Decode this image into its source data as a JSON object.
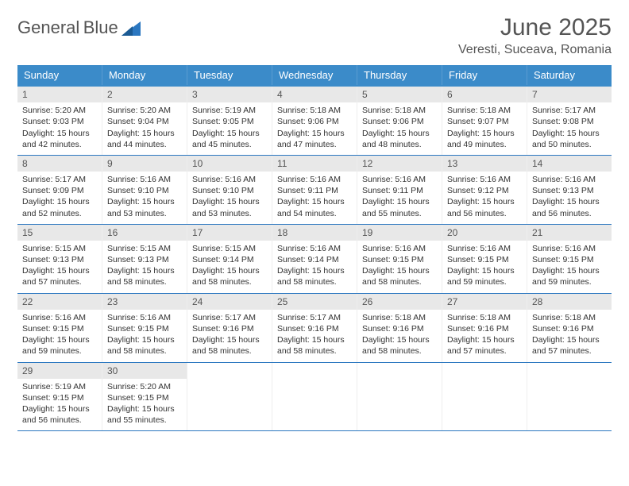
{
  "logo": {
    "word1": "General",
    "word2": "Blue"
  },
  "month_title": "June 2025",
  "location": "Veresti, Suceava, Romania",
  "colors": {
    "header_bg": "#3b8bc9",
    "header_text": "#ffffff",
    "rule": "#2b77c0",
    "daynum_bg": "#e8e8e8",
    "text": "#333333"
  },
  "day_names": [
    "Sunday",
    "Monday",
    "Tuesday",
    "Wednesday",
    "Thursday",
    "Friday",
    "Saturday"
  ],
  "weeks": [
    [
      {
        "n": "1",
        "sr": "5:20 AM",
        "ss": "9:03 PM",
        "dl": "15 hours and 42 minutes."
      },
      {
        "n": "2",
        "sr": "5:20 AM",
        "ss": "9:04 PM",
        "dl": "15 hours and 44 minutes."
      },
      {
        "n": "3",
        "sr": "5:19 AM",
        "ss": "9:05 PM",
        "dl": "15 hours and 45 minutes."
      },
      {
        "n": "4",
        "sr": "5:18 AM",
        "ss": "9:06 PM",
        "dl": "15 hours and 47 minutes."
      },
      {
        "n": "5",
        "sr": "5:18 AM",
        "ss": "9:06 PM",
        "dl": "15 hours and 48 minutes."
      },
      {
        "n": "6",
        "sr": "5:18 AM",
        "ss": "9:07 PM",
        "dl": "15 hours and 49 minutes."
      },
      {
        "n": "7",
        "sr": "5:17 AM",
        "ss": "9:08 PM",
        "dl": "15 hours and 50 minutes."
      }
    ],
    [
      {
        "n": "8",
        "sr": "5:17 AM",
        "ss": "9:09 PM",
        "dl": "15 hours and 52 minutes."
      },
      {
        "n": "9",
        "sr": "5:16 AM",
        "ss": "9:10 PM",
        "dl": "15 hours and 53 minutes."
      },
      {
        "n": "10",
        "sr": "5:16 AM",
        "ss": "9:10 PM",
        "dl": "15 hours and 53 minutes."
      },
      {
        "n": "11",
        "sr": "5:16 AM",
        "ss": "9:11 PM",
        "dl": "15 hours and 54 minutes."
      },
      {
        "n": "12",
        "sr": "5:16 AM",
        "ss": "9:11 PM",
        "dl": "15 hours and 55 minutes."
      },
      {
        "n": "13",
        "sr": "5:16 AM",
        "ss": "9:12 PM",
        "dl": "15 hours and 56 minutes."
      },
      {
        "n": "14",
        "sr": "5:16 AM",
        "ss": "9:13 PM",
        "dl": "15 hours and 56 minutes."
      }
    ],
    [
      {
        "n": "15",
        "sr": "5:15 AM",
        "ss": "9:13 PM",
        "dl": "15 hours and 57 minutes."
      },
      {
        "n": "16",
        "sr": "5:15 AM",
        "ss": "9:13 PM",
        "dl": "15 hours and 58 minutes."
      },
      {
        "n": "17",
        "sr": "5:15 AM",
        "ss": "9:14 PM",
        "dl": "15 hours and 58 minutes."
      },
      {
        "n": "18",
        "sr": "5:16 AM",
        "ss": "9:14 PM",
        "dl": "15 hours and 58 minutes."
      },
      {
        "n": "19",
        "sr": "5:16 AM",
        "ss": "9:15 PM",
        "dl": "15 hours and 58 minutes."
      },
      {
        "n": "20",
        "sr": "5:16 AM",
        "ss": "9:15 PM",
        "dl": "15 hours and 59 minutes."
      },
      {
        "n": "21",
        "sr": "5:16 AM",
        "ss": "9:15 PM",
        "dl": "15 hours and 59 minutes."
      }
    ],
    [
      {
        "n": "22",
        "sr": "5:16 AM",
        "ss": "9:15 PM",
        "dl": "15 hours and 59 minutes."
      },
      {
        "n": "23",
        "sr": "5:16 AM",
        "ss": "9:15 PM",
        "dl": "15 hours and 58 minutes."
      },
      {
        "n": "24",
        "sr": "5:17 AM",
        "ss": "9:16 PM",
        "dl": "15 hours and 58 minutes."
      },
      {
        "n": "25",
        "sr": "5:17 AM",
        "ss": "9:16 PM",
        "dl": "15 hours and 58 minutes."
      },
      {
        "n": "26",
        "sr": "5:18 AM",
        "ss": "9:16 PM",
        "dl": "15 hours and 58 minutes."
      },
      {
        "n": "27",
        "sr": "5:18 AM",
        "ss": "9:16 PM",
        "dl": "15 hours and 57 minutes."
      },
      {
        "n": "28",
        "sr": "5:18 AM",
        "ss": "9:16 PM",
        "dl": "15 hours and 57 minutes."
      }
    ],
    [
      {
        "n": "29",
        "sr": "5:19 AM",
        "ss": "9:15 PM",
        "dl": "15 hours and 56 minutes."
      },
      {
        "n": "30",
        "sr": "5:20 AM",
        "ss": "9:15 PM",
        "dl": "15 hours and 55 minutes."
      },
      null,
      null,
      null,
      null,
      null
    ]
  ],
  "labels": {
    "sunrise": "Sunrise:",
    "sunset": "Sunset:",
    "daylight": "Daylight:"
  }
}
